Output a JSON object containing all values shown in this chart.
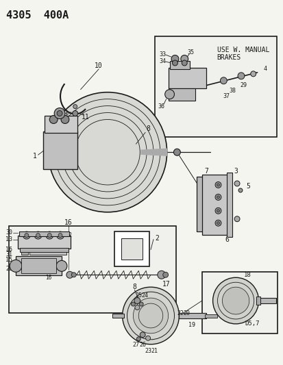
{
  "title": "4305  400A",
  "bg_color": "#f5f5f0",
  "fg_color": "#1a1a1a",
  "fig_width": 4.14,
  "fig_height": 5.33,
  "dpi": 100,
  "d57_label": "D5,7",
  "manual_brakes_lines": [
    "USE W. MANUAL",
    "BRAKES"
  ]
}
